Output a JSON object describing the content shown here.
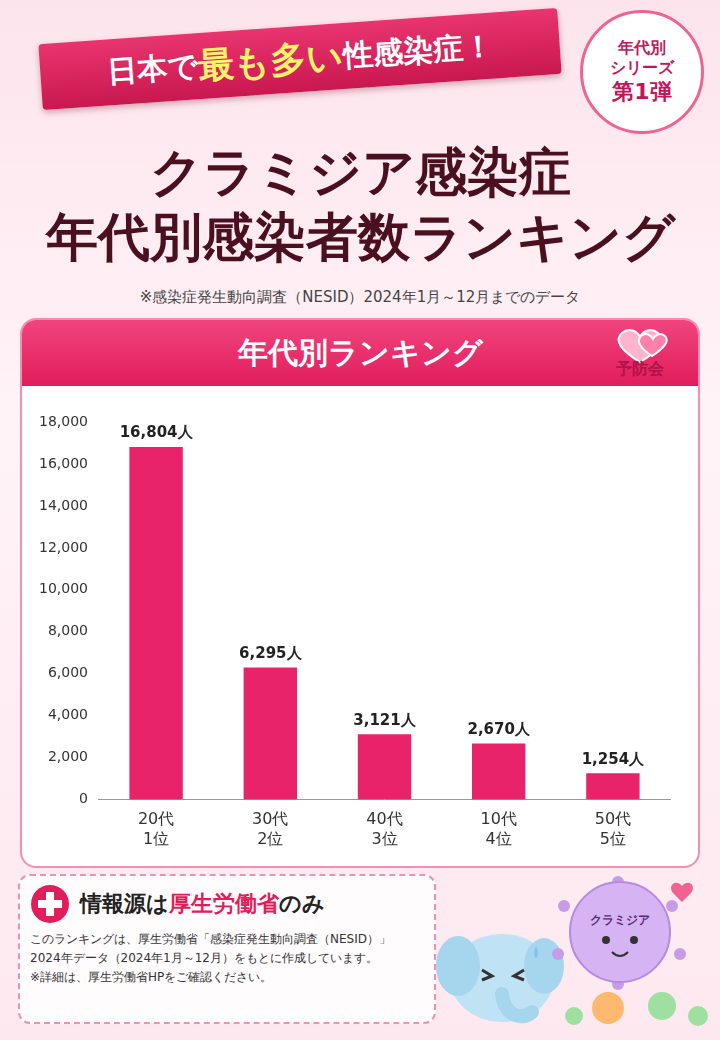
{
  "banner": [
    "日本で",
    "最も多い",
    "性感染症！"
  ],
  "badge": [
    "年代別",
    "シリーズ",
    "第1弾"
  ],
  "title_lines": [
    "クラミジア感染症",
    "年代別感染者数ランキング"
  ],
  "note": "※感染症発生動向調査（NESID）2024年1月～12月までのデータ",
  "logo": "予防会",
  "chart_data": {
    "type": "bar",
    "title": "年代別ランキング",
    "categories": [
      "20代",
      "30代",
      "40代",
      "10代",
      "50代"
    ],
    "ranks": [
      "1位",
      "2位",
      "3位",
      "4位",
      "5位"
    ],
    "values": [
      16804,
      6295,
      3121,
      2670,
      1254
    ],
    "value_labels": [
      "16,804人",
      "6,295人",
      "3,121人",
      "2,670人",
      "1,254人"
    ],
    "data_labels": true,
    "color": "#e8236a",
    "ylim": [
      0,
      18000
    ],
    "yticks": [
      0,
      {
        "value": 2000,
        "label": "2,000"
      },
      {
        "value": 4000,
        "label": "4,000"
      },
      {
        "value": 6000,
        "label": "6,000"
      },
      {
        "value": 8000,
        "label": "8,000"
      },
      {
        "value": 10000,
        "label": "10,000"
      },
      {
        "value": 12000,
        "label": "12,000"
      },
      {
        "value": 14000,
        "label": "14,000"
      },
      {
        "value": 16000,
        "label": "16,000"
      },
      {
        "value": 18000,
        "label": "18,000"
      }
    ],
    "grid": false
  },
  "source_box": {
    "heading": [
      "情報源は",
      "厚生労働省",
      "のみ"
    ],
    "lines": [
      "このランキングは、厚生労働省「感染症発生動向調査（NESID）」",
      "2024年データ（2024年1月～12月）をもとに作成しています。",
      "※詳細は、厚生労働省HPをご確認ください。"
    ]
  },
  "mascot_label": "クラミジア"
}
